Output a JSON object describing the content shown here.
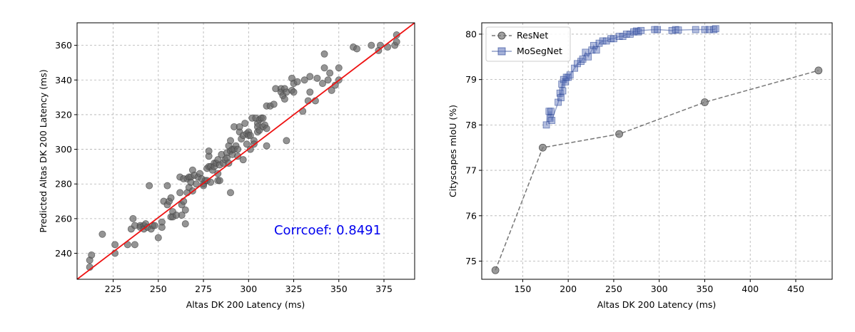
{
  "chart_data": [
    {
      "type": "scatter",
      "title": "",
      "xlabel": "Altas DK 200 Latency (ms)",
      "ylabel": "Predicted Altas DK 200 Latency (ms)",
      "xlim": [
        205,
        392
      ],
      "ylim": [
        225,
        373
      ],
      "xticks": [
        225,
        250,
        275,
        300,
        325,
        350,
        375
      ],
      "yticks": [
        240,
        260,
        280,
        300,
        320,
        340,
        360
      ],
      "grid": true,
      "annotation": "Corrcoef: 0.8491",
      "annotation_color": "#0000ee",
      "fit_line": {
        "x": [
          205,
          392
        ],
        "y": [
          225,
          373
        ],
        "color": "#ee1111"
      },
      "points_color": "#666666",
      "points": [
        [
          212,
          236
        ],
        [
          213,
          239
        ],
        [
          212,
          232
        ],
        [
          219,
          251
        ],
        [
          226,
          245
        ],
        [
          226,
          240
        ],
        [
          233,
          245
        ],
        [
          235,
          254
        ],
        [
          236,
          260
        ],
        [
          237,
          245
        ],
        [
          237,
          256
        ],
        [
          240,
          256
        ],
        [
          240,
          255
        ],
        [
          242,
          256
        ],
        [
          242,
          254
        ],
        [
          243,
          257
        ],
        [
          244,
          255
        ],
        [
          245,
          279
        ],
        [
          246,
          254
        ],
        [
          247,
          256
        ],
        [
          248,
          256
        ],
        [
          250,
          249
        ],
        [
          252,
          258
        ],
        [
          252,
          255
        ],
        [
          253,
          270
        ],
        [
          255,
          279
        ],
        [
          255,
          268
        ],
        [
          256,
          270
        ],
        [
          257,
          272
        ],
        [
          257,
          261
        ],
        [
          258,
          264
        ],
        [
          258,
          261
        ],
        [
          260,
          262
        ],
        [
          262,
          284
        ],
        [
          262,
          275
        ],
        [
          263,
          268
        ],
        [
          263,
          262
        ],
        [
          264,
          283
        ],
        [
          264,
          270
        ],
        [
          265,
          257
        ],
        [
          265,
          265
        ],
        [
          266,
          283
        ],
        [
          266,
          275
        ],
        [
          267,
          278
        ],
        [
          267,
          284
        ],
        [
          268,
          284
        ],
        [
          268,
          281
        ],
        [
          269,
          288
        ],
        [
          269,
          276
        ],
        [
          270,
          285
        ],
        [
          271,
          280
        ],
        [
          272,
          284
        ],
        [
          273,
          286
        ],
        [
          274,
          283
        ],
        [
          275,
          280
        ],
        [
          275,
          279
        ],
        [
          276,
          282
        ],
        [
          277,
          282
        ],
        [
          277,
          289
        ],
        [
          278,
          290
        ],
        [
          278,
          296
        ],
        [
          278,
          299
        ],
        [
          279,
          290
        ],
        [
          279,
          281
        ],
        [
          280,
          288
        ],
        [
          281,
          292
        ],
        [
          281,
          290
        ],
        [
          282,
          292
        ],
        [
          283,
          286
        ],
        [
          283,
          294
        ],
        [
          283,
          282
        ],
        [
          284,
          282
        ],
        [
          284,
          291
        ],
        [
          285,
          297
        ],
        [
          286,
          292
        ],
        [
          287,
          294
        ],
        [
          288,
          298
        ],
        [
          288,
          295
        ],
        [
          289,
          292
        ],
        [
          289,
          302
        ],
        [
          290,
          305
        ],
        [
          290,
          299
        ],
        [
          290,
          275
        ],
        [
          291,
          297
        ],
        [
          291,
          300
        ],
        [
          292,
          300
        ],
        [
          292,
          313
        ],
        [
          293,
          302
        ],
        [
          294,
          296
        ],
        [
          294,
          300
        ],
        [
          295,
          310
        ],
        [
          295,
          313
        ],
        [
          296,
          306
        ],
        [
          297,
          308
        ],
        [
          297,
          294
        ],
        [
          298,
          315
        ],
        [
          299,
          309
        ],
        [
          299,
          303
        ],
        [
          300,
          310
        ],
        [
          300,
          308
        ],
        [
          301,
          300
        ],
        [
          301,
          308
        ],
        [
          302,
          318
        ],
        [
          303,
          305
        ],
        [
          303,
          303
        ],
        [
          304,
          318
        ],
        [
          305,
          315
        ],
        [
          305,
          313
        ],
        [
          305,
          310
        ],
        [
          306,
          311
        ],
        [
          306,
          317
        ],
        [
          307,
          318
        ],
        [
          308,
          318
        ],
        [
          308,
          313
        ],
        [
          309,
          314
        ],
        [
          310,
          302
        ],
        [
          310,
          312
        ],
        [
          310,
          325
        ],
        [
          312,
          325
        ],
        [
          314,
          326
        ],
        [
          315,
          335
        ],
        [
          318,
          335
        ],
        [
          318,
          333
        ],
        [
          319,
          331
        ],
        [
          320,
          329
        ],
        [
          320,
          335
        ],
        [
          321,
          305
        ],
        [
          321,
          333
        ],
        [
          324,
          341
        ],
        [
          324,
          334
        ],
        [
          325,
          333
        ],
        [
          325,
          338
        ],
        [
          327,
          339
        ],
        [
          330,
          322
        ],
        [
          331,
          340
        ],
        [
          333,
          328
        ],
        [
          334,
          333
        ],
        [
          334,
          342
        ],
        [
          337,
          328
        ],
        [
          338,
          341
        ],
        [
          341,
          338
        ],
        [
          342,
          355
        ],
        [
          342,
          347
        ],
        [
          344,
          340
        ],
        [
          345,
          344
        ],
        [
          346,
          334
        ],
        [
          348,
          337
        ],
        [
          350,
          347
        ],
        [
          350,
          340
        ],
        [
          358,
          359
        ],
        [
          360,
          358
        ],
        [
          368,
          360
        ],
        [
          372,
          357
        ],
        [
          373,
          360
        ],
        [
          377,
          359
        ],
        [
          381,
          360
        ],
        [
          382,
          362
        ],
        [
          382,
          366
        ]
      ]
    },
    {
      "type": "line",
      "title": "",
      "xlabel": "Altas DK 200 Latency (ms)",
      "ylabel": "Cityscapes mIoU (%)",
      "xlim": [
        105,
        490
      ],
      "ylim": [
        74.6,
        80.25
      ],
      "xticks": [
        150,
        200,
        250,
        300,
        350,
        400,
        450
      ],
      "yticks": [
        75,
        76,
        77,
        78,
        79,
        80
      ],
      "grid": true,
      "legend_position": "top-left",
      "series": [
        {
          "name": "ResNet",
          "color": "#777777",
          "marker": "circle",
          "linestyle": "dashed",
          "x": [
            120,
            172,
            256,
            350,
            475
          ],
          "y": [
            74.8,
            77.5,
            77.8,
            78.5,
            79.2
          ]
        },
        {
          "name": "MoSegNet",
          "color": "#1f3c8f",
          "marker": "square",
          "linestyle": "solid",
          "x": [
            176,
            179,
            180,
            181,
            182,
            189,
            191,
            192,
            193,
            194,
            195,
            197,
            198,
            200,
            202,
            207,
            210,
            214,
            216,
            219,
            222,
            226,
            228,
            231,
            234,
            238,
            242,
            247,
            250,
            256,
            260,
            264,
            268,
            272,
            275,
            277,
            280,
            295,
            298,
            314,
            318,
            321,
            340,
            350,
            355,
            360,
            362
          ],
          "y": [
            78.0,
            78.3,
            78.15,
            78.3,
            78.1,
            78.5,
            78.7,
            78.6,
            78.9,
            78.75,
            79.0,
            78.95,
            79.05,
            79.05,
            79.1,
            79.25,
            79.35,
            79.4,
            79.45,
            79.6,
            79.5,
            79.65,
            79.75,
            79.65,
            79.8,
            79.85,
            79.85,
            79.9,
            79.9,
            79.95,
            79.95,
            80.0,
            80.0,
            80.05,
            80.07,
            80.05,
            80.08,
            80.1,
            80.1,
            80.08,
            80.1,
            80.09,
            80.1,
            80.1,
            80.1,
            80.1,
            80.12
          ]
        }
      ]
    }
  ]
}
